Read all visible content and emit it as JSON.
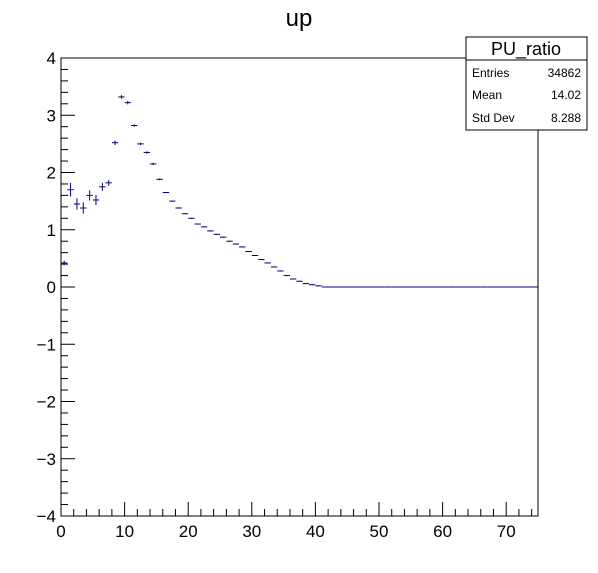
{
  "chart_data": {
    "type": "scatter",
    "title": "up",
    "xlabel": "",
    "ylabel": "",
    "xlim": [
      0,
      75
    ],
    "ylim": [
      -4,
      4
    ],
    "x_ticks": [
      0,
      10,
      20,
      30,
      40,
      50,
      60,
      70
    ],
    "y_ticks": [
      -4,
      -3,
      -2,
      -1,
      0,
      1,
      2,
      3,
      4
    ],
    "grid": false,
    "marker_color": "#000080",
    "stats_box": {
      "name": "PU_ratio",
      "entries_label": "Entries",
      "entries_value": "34862",
      "mean_label": "Mean",
      "mean_value": "14.02",
      "stddev_label": "Std Dev",
      "stddev_value": "8.288"
    },
    "series": [
      {
        "bin_width": 1,
        "x": [
          0.5,
          1.5,
          2.5,
          3.5,
          4.5,
          5.5,
          6.5,
          7.5,
          8.5,
          9.5,
          10.5,
          11.5,
          12.5,
          13.5,
          14.5,
          15.5,
          16.5,
          17.5,
          18.5,
          19.5,
          20.5,
          21.5,
          22.5,
          23.5,
          24.5,
          25.5,
          26.5,
          27.5,
          28.5,
          29.5,
          30.5,
          31.5,
          32.5,
          33.5,
          34.5,
          35.5,
          36.5,
          37.5,
          38.5,
          39.5,
          40.5,
          41.5,
          42.5,
          43.5,
          44.5,
          45.5,
          46.5,
          47.5,
          48.5,
          49.5,
          50.5,
          51.5,
          52.5,
          53.5,
          54.5,
          55.5,
          56.5,
          57.5,
          58.5,
          59.5,
          60.5,
          61.5,
          62.5,
          63.5,
          64.5,
          65.5,
          66.5,
          67.5,
          68.5,
          69.5,
          70.5,
          71.5,
          72.5,
          73.5,
          74.5
        ],
        "y": [
          0.42,
          1.7,
          1.45,
          1.38,
          1.6,
          1.52,
          1.75,
          1.82,
          2.52,
          3.32,
          3.22,
          2.82,
          2.5,
          2.35,
          2.15,
          1.88,
          1.65,
          1.5,
          1.38,
          1.28,
          1.2,
          1.1,
          1.05,
          0.98,
          0.92,
          0.87,
          0.8,
          0.75,
          0.7,
          0.62,
          0.55,
          0.48,
          0.42,
          0.35,
          0.28,
          0.2,
          0.14,
          0.1,
          0.06,
          0.04,
          0.02,
          0,
          0,
          0,
          0,
          0,
          0,
          0,
          0,
          0,
          0,
          0,
          0,
          0,
          0,
          0,
          0,
          0,
          0,
          0,
          0,
          0,
          0,
          0,
          0,
          0,
          0,
          0,
          0,
          0,
          0,
          0,
          0,
          0,
          0
        ],
        "y_err": [
          0.04,
          0.12,
          0.1,
          0.1,
          0.09,
          0.09,
          0.07,
          0.05,
          0.04,
          0.03,
          0.03,
          0.02,
          0.02,
          0.02,
          0.02,
          0.015,
          0.01,
          0.01,
          0.01,
          0.01,
          0.01,
          0.01,
          0.01,
          0.01,
          0.01,
          0.01,
          0.01,
          0.01,
          0.01,
          0.01,
          0.01,
          0.01,
          0.01,
          0.01,
          0.01,
          0.01,
          0.01,
          0.01,
          0.01,
          0.01,
          0.01,
          0,
          0,
          0,
          0,
          0,
          0,
          0,
          0,
          0,
          0,
          0,
          0,
          0,
          0,
          0,
          0,
          0,
          0,
          0,
          0,
          0,
          0,
          0,
          0,
          0,
          0,
          0,
          0,
          0,
          0,
          0,
          0,
          0,
          0
        ]
      }
    ]
  }
}
